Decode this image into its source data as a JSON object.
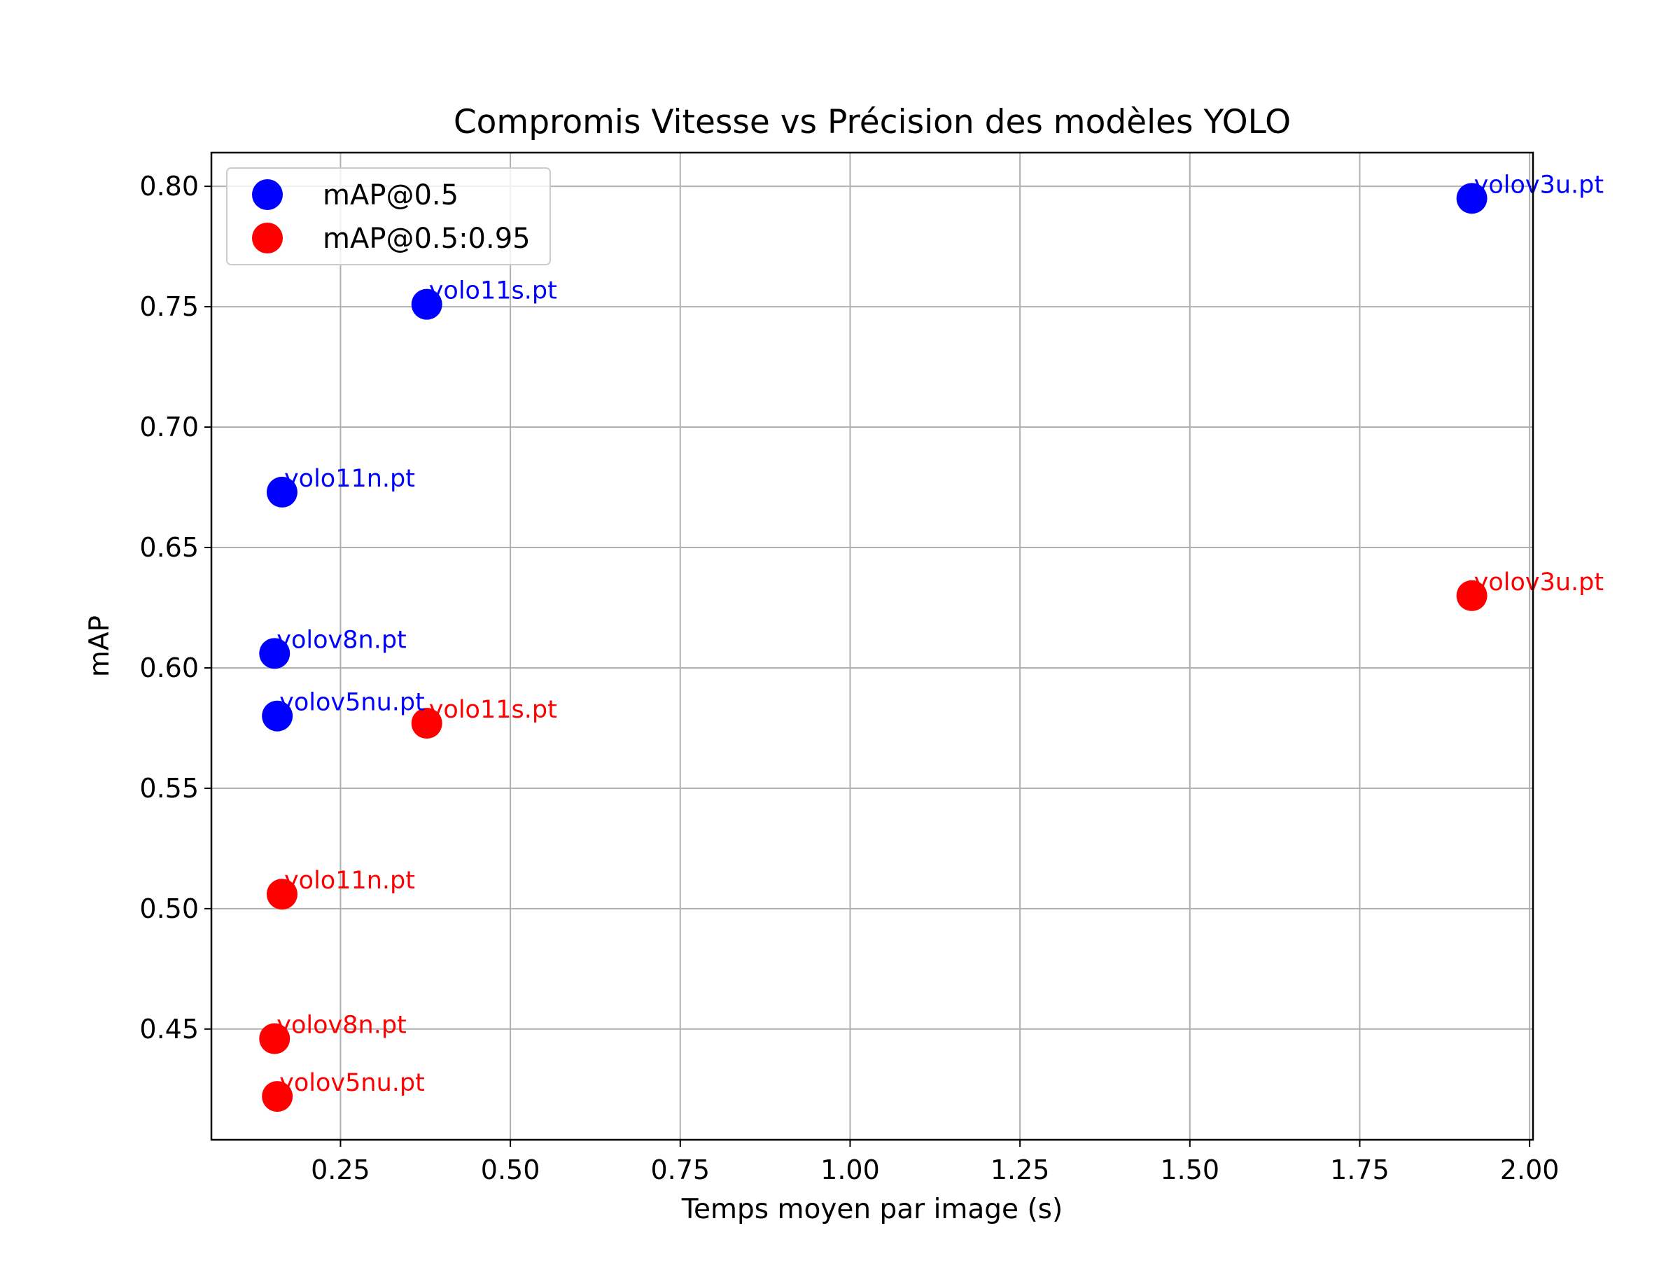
{
  "chart_data": {
    "type": "scatter",
    "title": "Compromis Vitesse vs Précision des modèles YOLO",
    "xlabel": "Temps moyen par image (s)",
    "ylabel": "mAP",
    "xlim": [
      0.06,
      2.005
    ],
    "ylim": [
      0.404,
      0.814
    ],
    "xticks": [
      0.25,
      0.5,
      0.75,
      1.0,
      1.25,
      1.5,
      1.75,
      2.0
    ],
    "xtick_labels": [
      "0.25",
      "0.50",
      "0.75",
      "1.00",
      "1.25",
      "1.50",
      "1.75",
      "2.00"
    ],
    "yticks": [
      0.45,
      0.5,
      0.55,
      0.6,
      0.65,
      0.7,
      0.75,
      0.8
    ],
    "ytick_labels": [
      "0.45",
      "0.50",
      "0.55",
      "0.60",
      "0.65",
      "0.70",
      "0.75",
      "0.80"
    ],
    "grid": true,
    "legend_position": "top-left",
    "series": [
      {
        "name": "mAP@0.5",
        "color": "#0000ff",
        "points": [
          {
            "label": "yolov3u.pt",
            "x": 1.915,
            "y": 0.795
          },
          {
            "label": "yolo11s.pt",
            "x": 0.377,
            "y": 0.751
          },
          {
            "label": "yolo11n.pt",
            "x": 0.164,
            "y": 0.673
          },
          {
            "label": "yolov8n.pt",
            "x": 0.153,
            "y": 0.606
          },
          {
            "label": "yolov5nu.pt",
            "x": 0.157,
            "y": 0.58
          }
        ]
      },
      {
        "name": "mAP@0.5:0.95",
        "color": "#ff0000",
        "points": [
          {
            "label": "yolov3u.pt",
            "x": 1.915,
            "y": 0.63
          },
          {
            "label": "yolo11s.pt",
            "x": 0.377,
            "y": 0.577
          },
          {
            "label": "yolo11n.pt",
            "x": 0.164,
            "y": 0.506
          },
          {
            "label": "yolov8n.pt",
            "x": 0.153,
            "y": 0.446
          },
          {
            "label": "yolov5nu.pt",
            "x": 0.157,
            "y": 0.422
          }
        ]
      }
    ]
  }
}
